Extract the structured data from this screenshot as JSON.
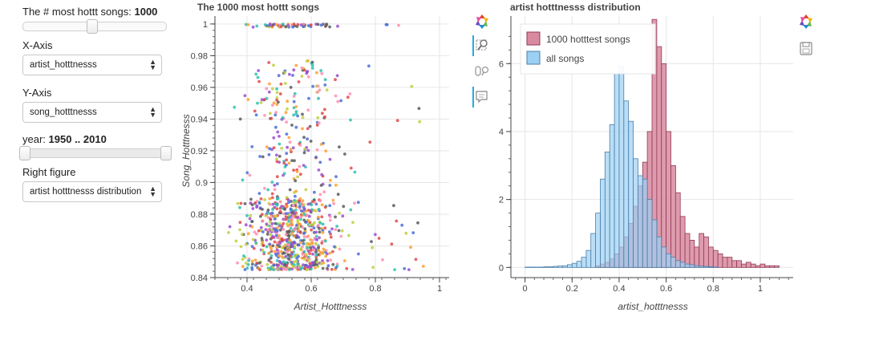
{
  "controls": {
    "songs_label": "The # most hottt songs:",
    "songs_value": "1000",
    "songs_fraction": 0.49,
    "xaxis_label": "X-Axis",
    "xaxis_value": "artist_hotttnesss",
    "yaxis_label": "Y-Axis",
    "yaxis_value": "song_hotttnesss",
    "year_label": "year:",
    "year_value": "1950 .. 2010",
    "year_range": [
      1950,
      2010
    ],
    "right_label": "Right figure",
    "right_value": "artist hotttnesss distribution"
  },
  "scatter": {
    "title": "The 1000 most hottt songs",
    "xlabel": "Artist_Hotttnesss",
    "ylabel": "Song_Hotttnesss",
    "xticks": [
      "0.4",
      "0.6",
      "0.8",
      "1"
    ],
    "yticks": [
      "0.84",
      "0.86",
      "0.88",
      "0.9",
      "0.92",
      "0.94",
      "0.96",
      "0.98",
      "1"
    ]
  },
  "histogram": {
    "title": "artist hotttnesss distribution",
    "xlabel": "artist_hotttnesss",
    "xticks": [
      "0",
      "0.2",
      "0.4",
      "0.6",
      "0.8",
      "1"
    ],
    "yticks": [
      "0",
      "2",
      "4",
      "6"
    ],
    "legend": [
      "1000 hotttest songs",
      "all songs"
    ]
  },
  "colors": {
    "hot": "#d98aa0",
    "hot_stroke": "#8f3a55",
    "all": "#9cd0f3",
    "all_stroke": "#4a7fa8",
    "scatter_palette": [
      "#4a6fd6",
      "#9a4fd0",
      "#ff8fb0",
      "#e04a4a",
      "#5a5a5a",
      "#ff9f30",
      "#2fbfb0",
      "#c0d040"
    ]
  },
  "chart_data": [
    {
      "type": "scatter",
      "title": "The 1000 most hottt songs",
      "xlabel": "Artist_Hotttnesss",
      "ylabel": "Song_Hotttnesss",
      "xlim": [
        0.3,
        1.1
      ],
      "ylim": [
        0.84,
        1.005
      ],
      "grid": true,
      "x_distribution": {
        "center": 0.54,
        "spread": 0.07,
        "outlier_max": 1.08
      },
      "y_distribution": {
        "min": 0.845,
        "max": 1.0,
        "dense_below": 0.88
      },
      "n_points": 1000
    },
    {
      "type": "bar",
      "title": "artist hotttnesss distribution",
      "xlabel": "artist_hotttnesss",
      "xlim": [
        -0.06,
        1.14
      ],
      "ylim": [
        -0.3,
        7.4
      ],
      "grid": true,
      "legend_position": "top-left",
      "bin_width": 0.02,
      "series": [
        {
          "name": "1000 hotttest songs",
          "bin_starts": [
            0.3,
            0.32,
            0.34,
            0.36,
            0.38,
            0.4,
            0.42,
            0.44,
            0.46,
            0.48,
            0.5,
            0.52,
            0.54,
            0.56,
            0.58,
            0.6,
            0.62,
            0.64,
            0.66,
            0.68,
            0.7,
            0.72,
            0.74,
            0.76,
            0.78,
            0.8,
            0.82,
            0.84,
            0.86,
            0.88,
            0.9,
            0.92,
            0.94,
            0.96,
            0.98,
            1.0,
            1.02,
            1.04,
            1.06
          ],
          "values": [
            0.05,
            0.1,
            0.15,
            0.25,
            0.4,
            0.6,
            0.9,
            1.3,
            1.8,
            2.4,
            3.1,
            4.0,
            7.3,
            6.5,
            6.0,
            4.0,
            3.0,
            2.2,
            1.5,
            1.0,
            0.8,
            0.6,
            1.0,
            0.9,
            0.6,
            0.5,
            0.4,
            0.3,
            0.3,
            0.2,
            0.2,
            0.1,
            0.15,
            0.1,
            0.05,
            0.1,
            0.05,
            0.05,
            0.05
          ]
        },
        {
          "name": "all songs",
          "bin_starts": [
            0.0,
            0.02,
            0.04,
            0.06,
            0.08,
            0.1,
            0.12,
            0.14,
            0.16,
            0.18,
            0.2,
            0.22,
            0.24,
            0.26,
            0.28,
            0.3,
            0.32,
            0.34,
            0.36,
            0.38,
            0.4,
            0.42,
            0.44,
            0.46,
            0.48,
            0.5,
            0.52,
            0.54,
            0.56,
            0.58,
            0.6,
            0.62,
            0.64,
            0.66,
            0.68,
            0.7,
            0.72,
            0.74,
            0.76,
            0.78,
            0.8
          ],
          "values": [
            0.01,
            0.01,
            0.01,
            0.01,
            0.02,
            0.02,
            0.03,
            0.04,
            0.05,
            0.08,
            0.12,
            0.18,
            0.3,
            0.5,
            1.0,
            1.6,
            2.6,
            3.4,
            4.2,
            5.7,
            5.9,
            4.9,
            4.3,
            3.2,
            2.7,
            2.6,
            2.0,
            1.4,
            0.9,
            0.6,
            0.4,
            0.3,
            0.2,
            0.15,
            0.1,
            0.08,
            0.05,
            0.04,
            0.03,
            0.02,
            0.01
          ]
        }
      ]
    }
  ]
}
